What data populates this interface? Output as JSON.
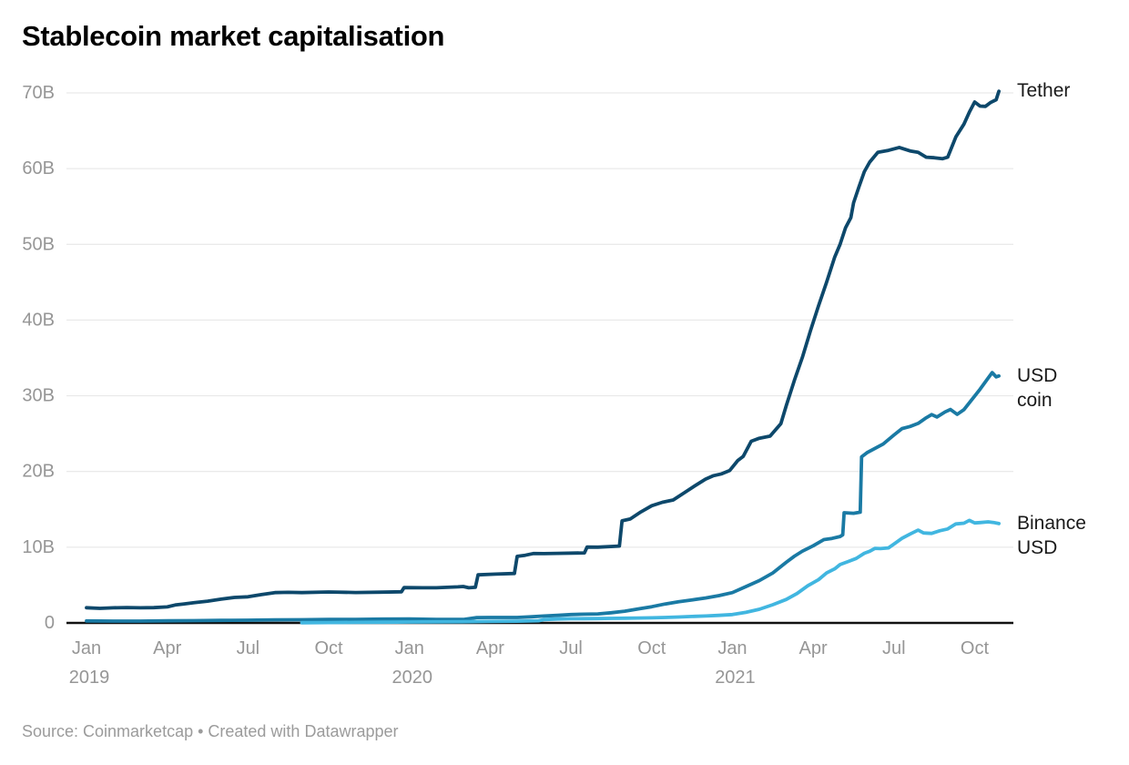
{
  "title": "Stablecoin market capitalisation",
  "footer": {
    "source": "Source: Coinmarketcap • Created with Datawrapper"
  },
  "chart_data": {
    "type": "line",
    "title": "Stablecoin market capitalisation",
    "xlabel": "",
    "ylabel": "",
    "x_unit": "months since Jan 2019",
    "x_range": [
      0,
      34
    ],
    "ylim": [
      0,
      70
    ],
    "grid": true,
    "legend_position": "right-edge-labels",
    "axis_text_color": "#969696",
    "grid_color": "#e4e4e4",
    "baseline_color": "#111111",
    "y_ticks": [
      {
        "value": 70,
        "label": "70B"
      },
      {
        "value": 60,
        "label": "60B"
      },
      {
        "value": 50,
        "label": "50B"
      },
      {
        "value": 40,
        "label": "40B"
      },
      {
        "value": 30,
        "label": "30B"
      },
      {
        "value": 20,
        "label": "20B"
      },
      {
        "value": 10,
        "label": "10B"
      },
      {
        "value": 0,
        "label": "0"
      }
    ],
    "x_ticks": [
      {
        "month": 0,
        "label": "Jan",
        "year": "2019"
      },
      {
        "month": 3,
        "label": "Apr"
      },
      {
        "month": 6,
        "label": "Jul"
      },
      {
        "month": 9,
        "label": "Oct"
      },
      {
        "month": 12,
        "label": "Jan",
        "year": "2020"
      },
      {
        "month": 15,
        "label": "Apr"
      },
      {
        "month": 18,
        "label": "Jul"
      },
      {
        "month": 21,
        "label": "Oct"
      },
      {
        "month": 24,
        "label": "Jan",
        "year": "2021"
      },
      {
        "month": 27,
        "label": "Apr"
      },
      {
        "month": 30,
        "label": "Jul"
      },
      {
        "month": 33,
        "label": "Oct"
      }
    ],
    "series": [
      {
        "name": "tether",
        "label": "Tether",
        "color": "#0d486b",
        "points": [
          [
            0,
            2.0
          ],
          [
            0.5,
            1.95
          ],
          [
            1,
            2.0
          ],
          [
            1.5,
            2.0
          ],
          [
            2,
            2.0
          ],
          [
            2.5,
            2.05
          ],
          [
            3,
            2.1
          ],
          [
            3.3,
            2.35
          ],
          [
            3.6,
            2.5
          ],
          [
            4,
            2.7
          ],
          [
            4.5,
            2.9
          ],
          [
            5,
            3.1
          ],
          [
            5.5,
            3.35
          ],
          [
            6,
            3.5
          ],
          [
            6.5,
            3.75
          ],
          [
            7,
            3.95
          ],
          [
            7.5,
            4.05
          ],
          [
            8,
            4.05
          ],
          [
            9,
            4.05
          ],
          [
            10,
            4.05
          ],
          [
            11,
            4.05
          ],
          [
            11.7,
            4.05
          ],
          [
            11.8,
            4.6
          ],
          [
            12.5,
            4.6
          ],
          [
            13,
            4.65
          ],
          [
            13.8,
            4.65
          ],
          [
            14.0,
            4.8
          ],
          [
            14.2,
            4.65
          ],
          [
            14.45,
            4.65
          ],
          [
            14.55,
            6.35
          ],
          [
            15.2,
            6.4
          ],
          [
            15.9,
            6.4
          ],
          [
            16.0,
            8.75
          ],
          [
            16.3,
            9.0
          ],
          [
            16.6,
            9.2
          ],
          [
            17,
            9.2
          ],
          [
            17.5,
            9.2
          ],
          [
            18.5,
            9.25
          ],
          [
            18.6,
            10.0
          ],
          [
            19,
            10.05
          ],
          [
            19.8,
            10.1
          ],
          [
            19.9,
            13.4
          ],
          [
            20.2,
            13.9
          ],
          [
            20.6,
            14.6
          ],
          [
            21,
            15.5
          ],
          [
            21.4,
            15.8
          ],
          [
            21.8,
            16.3
          ],
          [
            22.2,
            17.3
          ],
          [
            22.6,
            18.0
          ],
          [
            23,
            19.0
          ],
          [
            23.3,
            19.3
          ],
          [
            23.6,
            19.8
          ],
          [
            23.9,
            20.2
          ],
          [
            24.2,
            21.5
          ],
          [
            24.4,
            22.1
          ],
          [
            24.7,
            23.8
          ],
          [
            25.0,
            24.4
          ],
          [
            25.4,
            24.6
          ],
          [
            25.8,
            26.5
          ],
          [
            26.0,
            28.7
          ],
          [
            26.3,
            32.0
          ],
          [
            26.6,
            35.0
          ],
          [
            26.9,
            38.5
          ],
          [
            27.2,
            42.0
          ],
          [
            27.5,
            45.0
          ],
          [
            27.8,
            48.5
          ],
          [
            28.0,
            50.0
          ],
          [
            28.2,
            52.0
          ],
          [
            28.4,
            53.5
          ],
          [
            28.5,
            55.5
          ],
          [
            28.7,
            57.5
          ],
          [
            28.9,
            59.5
          ],
          [
            29.1,
            61.0
          ],
          [
            29.4,
            62.2
          ],
          [
            29.8,
            62.5
          ],
          [
            30.2,
            62.6
          ],
          [
            30.6,
            62.4
          ],
          [
            30.9,
            62.1
          ],
          [
            31.2,
            61.7
          ],
          [
            31.5,
            61.4
          ],
          [
            31.8,
            61.3
          ],
          [
            32.0,
            61.5
          ],
          [
            32.3,
            64.0
          ],
          [
            32.6,
            66.0
          ],
          [
            32.8,
            67.5
          ],
          [
            33.0,
            68.8
          ],
          [
            33.2,
            68.4
          ],
          [
            33.4,
            68.3
          ],
          [
            33.6,
            68.6
          ],
          [
            33.8,
            69.0
          ],
          [
            33.9,
            70.2
          ]
        ]
      },
      {
        "name": "usd-coin",
        "label": "USD\ncoin",
        "color": "#1a7aa4",
        "points": [
          [
            0,
            0.26
          ],
          [
            1,
            0.24
          ],
          [
            2,
            0.24
          ],
          [
            3,
            0.27
          ],
          [
            4,
            0.3
          ],
          [
            5,
            0.33
          ],
          [
            6,
            0.36
          ],
          [
            7,
            0.4
          ],
          [
            8,
            0.43
          ],
          [
            9,
            0.45
          ],
          [
            10,
            0.47
          ],
          [
            11,
            0.5
          ],
          [
            12,
            0.52
          ],
          [
            13,
            0.47
          ],
          [
            14,
            0.45
          ],
          [
            14.5,
            0.7
          ],
          [
            15,
            0.73
          ],
          [
            16,
            0.72
          ],
          [
            16.5,
            0.8
          ],
          [
            17,
            0.92
          ],
          [
            17.5,
            1.0
          ],
          [
            18,
            1.1
          ],
          [
            18.5,
            1.15
          ],
          [
            19,
            1.2
          ],
          [
            19.5,
            1.35
          ],
          [
            20,
            1.55
          ],
          [
            20.5,
            1.85
          ],
          [
            21,
            2.15
          ],
          [
            21.5,
            2.5
          ],
          [
            22,
            2.8
          ],
          [
            22.5,
            3.05
          ],
          [
            23,
            3.3
          ],
          [
            23.5,
            3.6
          ],
          [
            24,
            4.0
          ],
          [
            24.5,
            4.8
          ],
          [
            25,
            5.6
          ],
          [
            25.5,
            6.6
          ],
          [
            26,
            8.0
          ],
          [
            26.3,
            8.8
          ],
          [
            26.6,
            9.4
          ],
          [
            27,
            10.2
          ],
          [
            27.4,
            11.0
          ],
          [
            27.7,
            11.3
          ],
          [
            28.0,
            11.4
          ],
          [
            28.1,
            11.5
          ],
          [
            28.15,
            14.4
          ],
          [
            28.5,
            14.5
          ],
          [
            28.75,
            14.5
          ],
          [
            28.8,
            21.8
          ],
          [
            29.0,
            22.5
          ],
          [
            29.3,
            23.2
          ],
          [
            29.6,
            23.6
          ],
          [
            30,
            24.8
          ],
          [
            30.3,
            25.5
          ],
          [
            30.6,
            26.0
          ],
          [
            30.9,
            26.3
          ],
          [
            31.2,
            27.3
          ],
          [
            31.4,
            27.6
          ],
          [
            31.6,
            27.1
          ],
          [
            31.9,
            27.9
          ],
          [
            32.1,
            28.1
          ],
          [
            32.35,
            27.4
          ],
          [
            32.6,
            28.3
          ],
          [
            32.9,
            29.5
          ],
          [
            33.2,
            31.0
          ],
          [
            33.5,
            32.3
          ],
          [
            33.65,
            32.9
          ],
          [
            33.8,
            32.4
          ],
          [
            33.9,
            32.6
          ]
        ]
      },
      {
        "name": "binance-usd",
        "label": "Binance\nUSD",
        "color": "#41b6e0",
        "points": [
          [
            8,
            0.03
          ],
          [
            9,
            0.05
          ],
          [
            10,
            0.07
          ],
          [
            11,
            0.1
          ],
          [
            12,
            0.12
          ],
          [
            13,
            0.14
          ],
          [
            14,
            0.16
          ],
          [
            15,
            0.19
          ],
          [
            16,
            0.23
          ],
          [
            16.8,
            0.3
          ],
          [
            17,
            0.45
          ],
          [
            17.5,
            0.52
          ],
          [
            18,
            0.55
          ],
          [
            18.5,
            0.57
          ],
          [
            19,
            0.58
          ],
          [
            19.5,
            0.6
          ],
          [
            20,
            0.62
          ],
          [
            20.5,
            0.65
          ],
          [
            21,
            0.68
          ],
          [
            21.5,
            0.72
          ],
          [
            22,
            0.78
          ],
          [
            22.5,
            0.85
          ],
          [
            23,
            0.92
          ],
          [
            23.5,
            1.0
          ],
          [
            24,
            1.1
          ],
          [
            24.5,
            1.4
          ],
          [
            25,
            1.8
          ],
          [
            25.5,
            2.4
          ],
          [
            26,
            3.1
          ],
          [
            26.4,
            3.9
          ],
          [
            26.8,
            4.8
          ],
          [
            27.2,
            5.8
          ],
          [
            27.5,
            6.6
          ],
          [
            27.8,
            7.3
          ],
          [
            28,
            7.7
          ],
          [
            28.3,
            8.0
          ],
          [
            28.6,
            8.5
          ],
          [
            28.9,
            9.1
          ],
          [
            29.1,
            9.6
          ],
          [
            29.3,
            10.0
          ],
          [
            29.5,
            9.8
          ],
          [
            29.8,
            10.0
          ],
          [
            30,
            10.4
          ],
          [
            30.3,
            11.0
          ],
          [
            30.6,
            11.8
          ],
          [
            30.9,
            12.2
          ],
          [
            31.1,
            12.0
          ],
          [
            31.4,
            11.9
          ],
          [
            31.7,
            12.1
          ],
          [
            32,
            12.4
          ],
          [
            32.3,
            12.9
          ],
          [
            32.6,
            13.3
          ],
          [
            32.8,
            13.6
          ],
          [
            33,
            13.2
          ],
          [
            33.2,
            13.4
          ],
          [
            33.5,
            13.3
          ],
          [
            33.7,
            13.1
          ],
          [
            33.9,
            13.1
          ]
        ]
      }
    ]
  }
}
